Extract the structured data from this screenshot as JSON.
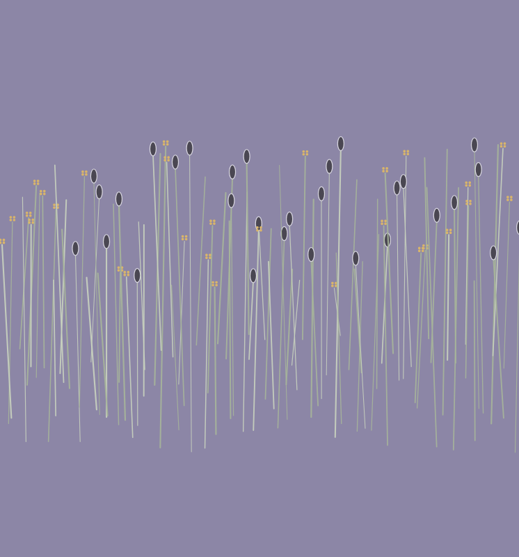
{
  "image": {
    "subject": "grass-stems-with-seed-heads",
    "colors": {
      "background": "#8c86a6",
      "stem": "#c9d3bf",
      "stem_shade": "#a7b59a",
      "seed_head": "#4a4752",
      "seed_head_edge": "#d8d6e0",
      "flower": "#d9b56a"
    }
  }
}
